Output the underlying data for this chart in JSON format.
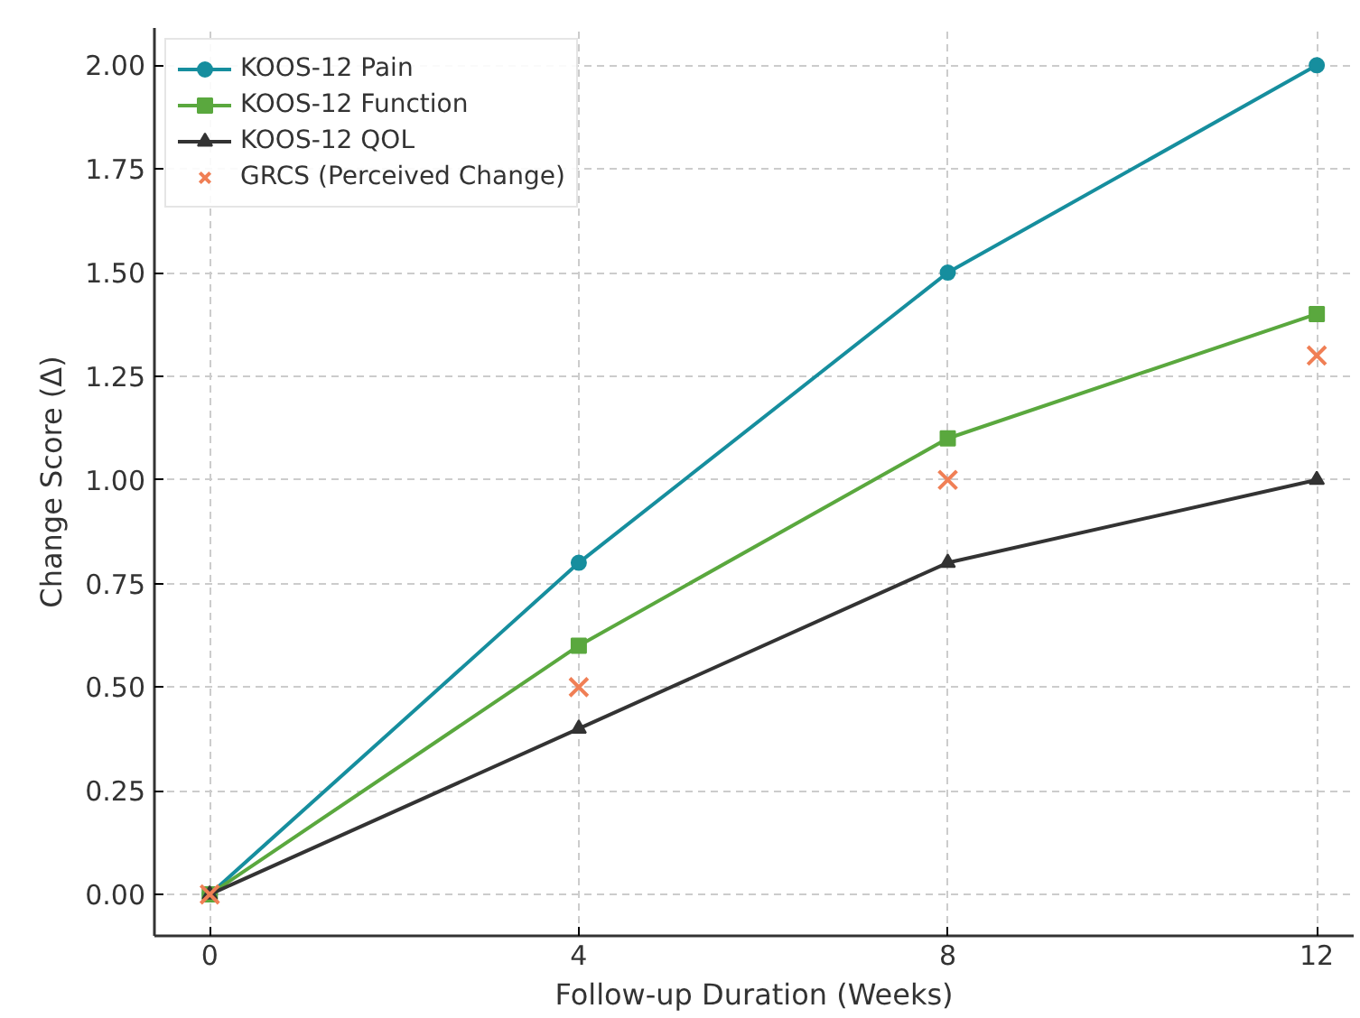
{
  "chart_data": {
    "type": "line",
    "xlabel": "Follow-up Duration (Weeks)",
    "ylabel": "Change Score (Δ)",
    "x": [
      0,
      4,
      8,
      12
    ],
    "series": [
      {
        "name": "KOOS-12 Pain",
        "color": "#168e9e",
        "marker": "circle",
        "values": [
          0,
          0.8,
          1.5,
          2.0
        ]
      },
      {
        "name": "KOOS-12 Function",
        "color": "#5aa83e",
        "marker": "square",
        "values": [
          0,
          0.6,
          1.1,
          1.4
        ]
      },
      {
        "name": "KOOS-12 QOL",
        "color": "#333333",
        "marker": "triangle",
        "values": [
          0,
          0.4,
          0.8,
          1.0
        ]
      },
      {
        "name": "GRCS (Perceived Change)",
        "type": "scatter",
        "color": "#f07f55",
        "marker": "cross",
        "values": [
          0,
          0.5,
          1.0,
          1.3
        ]
      }
    ],
    "xlim": [
      -0.6,
      12.4
    ],
    "ylim": [
      -0.1,
      2.09
    ],
    "xticks": [
      0,
      4,
      8,
      12
    ],
    "yticks": [
      {
        "value": 0,
        "label": "0.00"
      },
      {
        "value": 0.25,
        "label": "0.25"
      },
      {
        "value": 0.5,
        "label": "0.50"
      },
      {
        "value": 0.75,
        "label": "0.75"
      },
      {
        "value": 1.0,
        "label": "1.00"
      },
      {
        "value": 1.25,
        "label": "1.25"
      },
      {
        "value": 1.5,
        "label": "1.50"
      },
      {
        "value": 1.75,
        "label": "1.75"
      },
      {
        "value": 2.0,
        "label": "2.00"
      }
    ],
    "grid": true,
    "legend": "top left",
    "line_style": "solid"
  }
}
